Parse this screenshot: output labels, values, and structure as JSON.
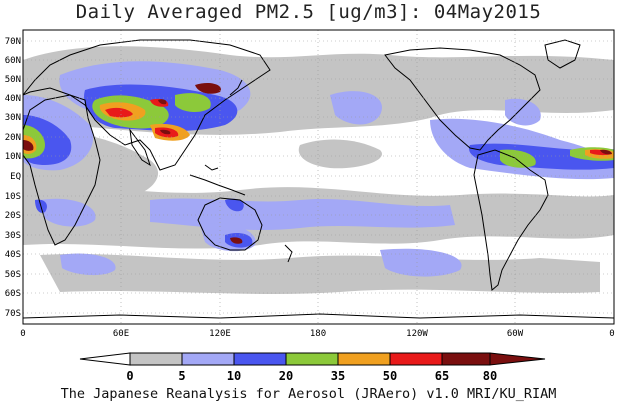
{
  "title": "Daily Averaged PM2.5 [ug/m3]: 04May2015",
  "footer": "The Japanese Reanalysis for Aerosol (JRAero) v1.0 MRI/KU_RIAM",
  "lat_labels": [
    "70N",
    "60N",
    "50N",
    "40N",
    "30N",
    "20N",
    "10N",
    "EQ",
    "10S",
    "20S",
    "30S",
    "40S",
    "50S",
    "60S",
    "70S"
  ],
  "lon_labels": [
    "0",
    "60E",
    "120E",
    "180",
    "120W",
    "60W",
    "0"
  ],
  "colorbar": {
    "labels": [
      "0",
      "5",
      "10",
      "20",
      "35",
      "50",
      "65",
      "80"
    ],
    "colors": [
      "#ffffff",
      "#c4c4c4",
      "#a3a8f6",
      "#4a56ef",
      "#8cc93a",
      "#f0a020",
      "#e81a1a",
      "#7a0f0f"
    ]
  }
}
